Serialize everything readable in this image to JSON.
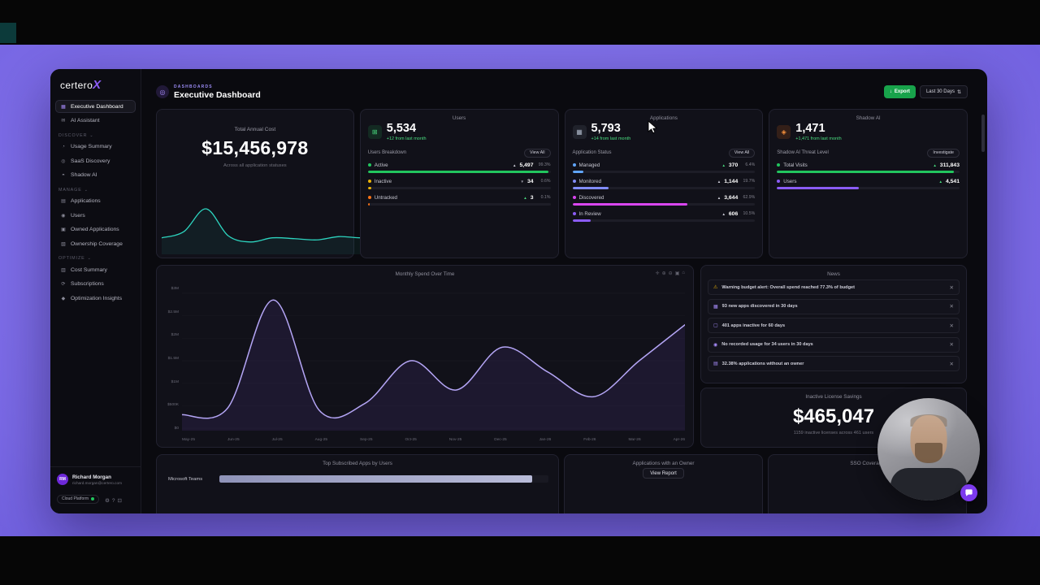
{
  "window": {
    "brand": "certero",
    "brand_x": "X"
  },
  "sidebar": {
    "chevron": "⌄",
    "nav": [
      {
        "heading": null,
        "items": [
          {
            "label": "Executive Dashboard",
            "icon": "▦",
            "icon_name": "dashboard-grid-icon",
            "active": true
          },
          {
            "label": "AI Assistant",
            "icon": "✉",
            "icon_name": "chat-icon",
            "active": false
          }
        ]
      },
      {
        "heading": "DISCOVER",
        "items": [
          {
            "label": "Usage Summary",
            "icon": "◔",
            "icon_name": "pie-icon",
            "active": false
          },
          {
            "label": "SaaS Discovery",
            "icon": "◎",
            "icon_name": "discovery-icon",
            "active": false
          },
          {
            "label": "Shadow AI",
            "icon": "◓",
            "icon_name": "shadow-ai-icon",
            "active": false
          }
        ]
      },
      {
        "heading": "MANAGE",
        "items": [
          {
            "label": "Applications",
            "icon": "▤",
            "icon_name": "applications-icon",
            "active": false
          },
          {
            "label": "Users",
            "icon": "◉",
            "icon_name": "users-icon",
            "active": false
          },
          {
            "label": "Owned Applications",
            "icon": "▣",
            "icon_name": "owned-apps-icon",
            "active": false
          },
          {
            "label": "Ownership Coverage",
            "icon": "▧",
            "icon_name": "ownership-icon",
            "active": false
          }
        ]
      },
      {
        "heading": "OPTIMIZE",
        "items": [
          {
            "label": "Cost Summary",
            "icon": "▥",
            "icon_name": "cost-icon",
            "active": false
          },
          {
            "label": "Subscriptions",
            "icon": "⟳",
            "icon_name": "subscriptions-icon",
            "active": false
          },
          {
            "label": "Optimization Insights",
            "icon": "◆",
            "icon_name": "insights-icon",
            "active": false
          }
        ]
      }
    ],
    "user": {
      "initials": "RM",
      "name": "Richard Morgan",
      "email": "richard.morgan@certero.com"
    },
    "platform": {
      "label": "Cloud Platform",
      "status_dot_color": "#22c55e"
    },
    "footer_icons": [
      {
        "glyph": "⚙",
        "name": "gear-icon"
      },
      {
        "glyph": "?",
        "name": "help-icon"
      },
      {
        "glyph": "⊡",
        "name": "apps-grid-icon"
      }
    ]
  },
  "header": {
    "eyebrow": "DASHBOARDS",
    "title": "Executive Dashboard",
    "export_label": "Export",
    "range_label": "Last 30 Days",
    "icons": {
      "dashboard": "◎",
      "download": "↓",
      "filter": "⇅"
    }
  },
  "cards": {
    "cost": {
      "title": "Total Annual Cost",
      "value": "$15,456,978",
      "subtitle": "Across all application statuses"
    },
    "users": {
      "title": "Users",
      "icon": "⊞",
      "metric": "5,534",
      "delta": "+12 from last month",
      "section_label": "Users Breakdown",
      "action_label": "View All",
      "rows": [
        {
          "label": "Active",
          "dot": "#22c55e",
          "arrow": "▲",
          "arrow_color": "#cfcfda",
          "value": "5,497",
          "pct": "99.3%",
          "bar_pct": 99,
          "bar_color": "#22c55e"
        },
        {
          "label": "Inactive",
          "dot": "#eab308",
          "arrow": "▼",
          "arrow_color": "#9a9aa6",
          "value": "34",
          "pct": "0.6%",
          "bar_pct": 2,
          "bar_color": "#eab308"
        },
        {
          "label": "Untracked",
          "dot": "#f97316",
          "arrow": "▲",
          "arrow_color": "#4ade80",
          "value": "3",
          "pct": "0.1%",
          "bar_pct": 1,
          "bar_color": "#f97316"
        }
      ]
    },
    "applications": {
      "title": "Applications",
      "icon": "▦",
      "metric": "5,793",
      "delta": "+14 from last month",
      "section_label": "Application Status",
      "action_label": "View All",
      "rows": [
        {
          "label": "Managed",
          "dot": "#60a5fa",
          "arrow": "▲",
          "arrow_color": "#4ade80",
          "value": "370",
          "pct": "6.4%",
          "bar_pct": 6,
          "bar_color": "#60a5fa"
        },
        {
          "label": "Monitored",
          "dot": "#818cf8",
          "arrow": "▲",
          "arrow_color": "#cfcfda",
          "value": "1,144",
          "pct": "19.7%",
          "bar_pct": 20,
          "bar_color": "#818cf8"
        },
        {
          "label": "Discovered",
          "dot": "#d946ef",
          "arrow": "▲",
          "arrow_color": "#cfcfda",
          "value": "3,644",
          "pct": "62.9%",
          "bar_pct": 63,
          "bar_color": "#d946ef"
        },
        {
          "label": "In Review",
          "dot": "#8b5cf6",
          "arrow": "▲",
          "arrow_color": "#cfcfda",
          "value": "606",
          "pct": "10.5%",
          "bar_pct": 10,
          "bar_color": "#8b5cf6"
        }
      ]
    },
    "shadow_ai": {
      "title": "Shadow AI",
      "icon": "◈",
      "metric": "1,471",
      "delta": "+1,471 from last month",
      "section_label": "Shadow AI Threat Level",
      "action_label": "Investigate",
      "rows": [
        {
          "label": "Total Visits",
          "dot": "#22c55e",
          "arrow": "▲",
          "arrow_color": "#4ade80",
          "value": "311,843",
          "pct": "",
          "bar_pct": 97,
          "bar_color": "#22c55e"
        },
        {
          "label": "Users",
          "dot": "#8b5cf6",
          "arrow": "▲",
          "arrow_color": "#4ade80",
          "value": "4,541",
          "pct": "",
          "bar_pct": 45,
          "bar_color": "#8b5cf6"
        }
      ]
    },
    "spend": {
      "title": "Monthly Spend Over Time",
      "toolbar_icons": [
        "✛",
        "⊕",
        "⊖",
        "▣",
        "⌂"
      ]
    },
    "news": {
      "title": "News",
      "dismiss_glyph": "✕",
      "items": [
        {
          "icon": "⚠",
          "icon_color": "#eab308",
          "icon_name": "warning-icon",
          "text": "Warning budget alert: Overall spend reached 77.3% of budget"
        },
        {
          "icon": "▦",
          "icon_color": "#a78bfa",
          "icon_name": "new-apps-icon",
          "text": "93 new apps discovered in 30 days"
        },
        {
          "icon": "▢",
          "icon_color": "#a78bfa",
          "icon_name": "inactive-apps-icon",
          "text": "401 apps inactive for 60 days"
        },
        {
          "icon": "◉",
          "icon_color": "#a78bfa",
          "icon_name": "users-usage-icon",
          "text": "No recorded usage for 34 users in 30 days"
        },
        {
          "icon": "▤",
          "icon_color": "#a78bfa",
          "icon_name": "owner-icon",
          "text": "32.38% applications without an owner"
        }
      ]
    },
    "savings": {
      "title": "Inactive License Savings",
      "value": "$465,047",
      "subtitle": "1159 inactive licenses across 461 users"
    },
    "top_apps": {
      "title": "Top Subscribed Apps by Users"
    },
    "owner": {
      "title": "Applications with an Owner",
      "action_label": "View Report"
    },
    "sso": {
      "title": "SSO Coverage"
    }
  },
  "chart_data": [
    {
      "id": "annual-cost-sparkline",
      "type": "line",
      "title": "Total Annual Cost trend",
      "values_relative": [
        0.3,
        0.45,
        1.0,
        0.35,
        0.2,
        0.3,
        0.28,
        0.25,
        0.33,
        0.3,
        0.35,
        0.18
      ],
      "line_color": "#2dd4bf",
      "grid": false,
      "legend": "none"
    },
    {
      "id": "monthly-spend",
      "type": "line",
      "title": "Monthly Spend Over Time",
      "categories": [
        "May-25",
        "Jun-25",
        "Jul-25",
        "Aug-25",
        "Sep-25",
        "Oct-25",
        "Nov-25",
        "Dec-25",
        "Jan-26",
        "Feb-26",
        "Mar-26",
        "Apr-26"
      ],
      "values_musd": [
        0.3,
        0.45,
        2.85,
        0.4,
        0.55,
        1.5,
        0.85,
        1.8,
        1.25,
        0.7,
        1.5,
        2.3
      ],
      "ylim": [
        0,
        3
      ],
      "y_tick_labels": [
        "$3M",
        "$2.5M",
        "$2M",
        "$1.5M",
        "$1M",
        "$500K",
        "$0"
      ],
      "xlabel": "",
      "ylabel": "",
      "line_color": "#b4a5f5",
      "grid": true,
      "legend": "none"
    },
    {
      "id": "top-apps",
      "type": "bar",
      "title": "Top Subscribed Apps by Users",
      "categories": [
        "Microsoft Teams"
      ],
      "bar_fractions": [
        0.95
      ]
    }
  ]
}
